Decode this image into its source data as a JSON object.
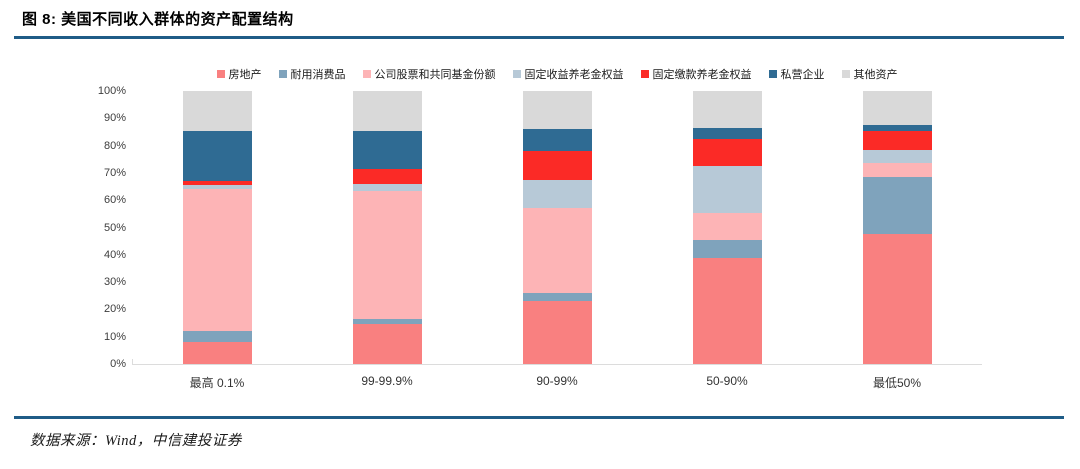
{
  "figure": {
    "title": "图 8: 美国不同收入群体的资产配置结构",
    "source": "数据来源：Wind，中信建投证券"
  },
  "accent": {
    "rule_color": "#1f5c87",
    "axis_color": "#dcdcdc"
  },
  "chart_data": {
    "type": "bar",
    "stacked": true,
    "unit": "%",
    "title": "美国不同收入群体的资产配置结构",
    "categories": [
      "最高 0.1%",
      "99-99.9%",
      "90-99%",
      "50-90%",
      "最低50%"
    ],
    "series": [
      {
        "name": "房地产",
        "color": "#f98080",
        "values": [
          8,
          14.5,
          23,
          39,
          47.5
        ]
      },
      {
        "name": "耐用消费品",
        "color": "#7fa3bc",
        "values": [
          4,
          2,
          3,
          6.5,
          21
        ]
      },
      {
        "name": "公司股票和共同基金份额",
        "color": "#fdb4b6",
        "values": [
          52,
          47,
          31,
          10,
          5
        ]
      },
      {
        "name": "固定收益养老金权益",
        "color": "#b7c9d7",
        "values": [
          1.5,
          2.5,
          10.5,
          17,
          5
        ]
      },
      {
        "name": "固定缴款养老金权益",
        "color": "#fb2a26",
        "values": [
          1.5,
          5.5,
          10.5,
          10,
          7
        ]
      },
      {
        "name": "私营企业",
        "color": "#2f6b93",
        "values": [
          18.5,
          14,
          8,
          4,
          2
        ]
      },
      {
        "name": "其他资产",
        "color": "#d9d9d9",
        "values": [
          14.5,
          14.5,
          14,
          13.5,
          12.5
        ]
      }
    ],
    "y_ticks": [
      "0%",
      "10%",
      "20%",
      "30%",
      "40%",
      "50%",
      "60%",
      "70%",
      "80%",
      "90%",
      "100%"
    ],
    "ylim": [
      0,
      100
    ],
    "legend_position": "top",
    "grid": false
  }
}
